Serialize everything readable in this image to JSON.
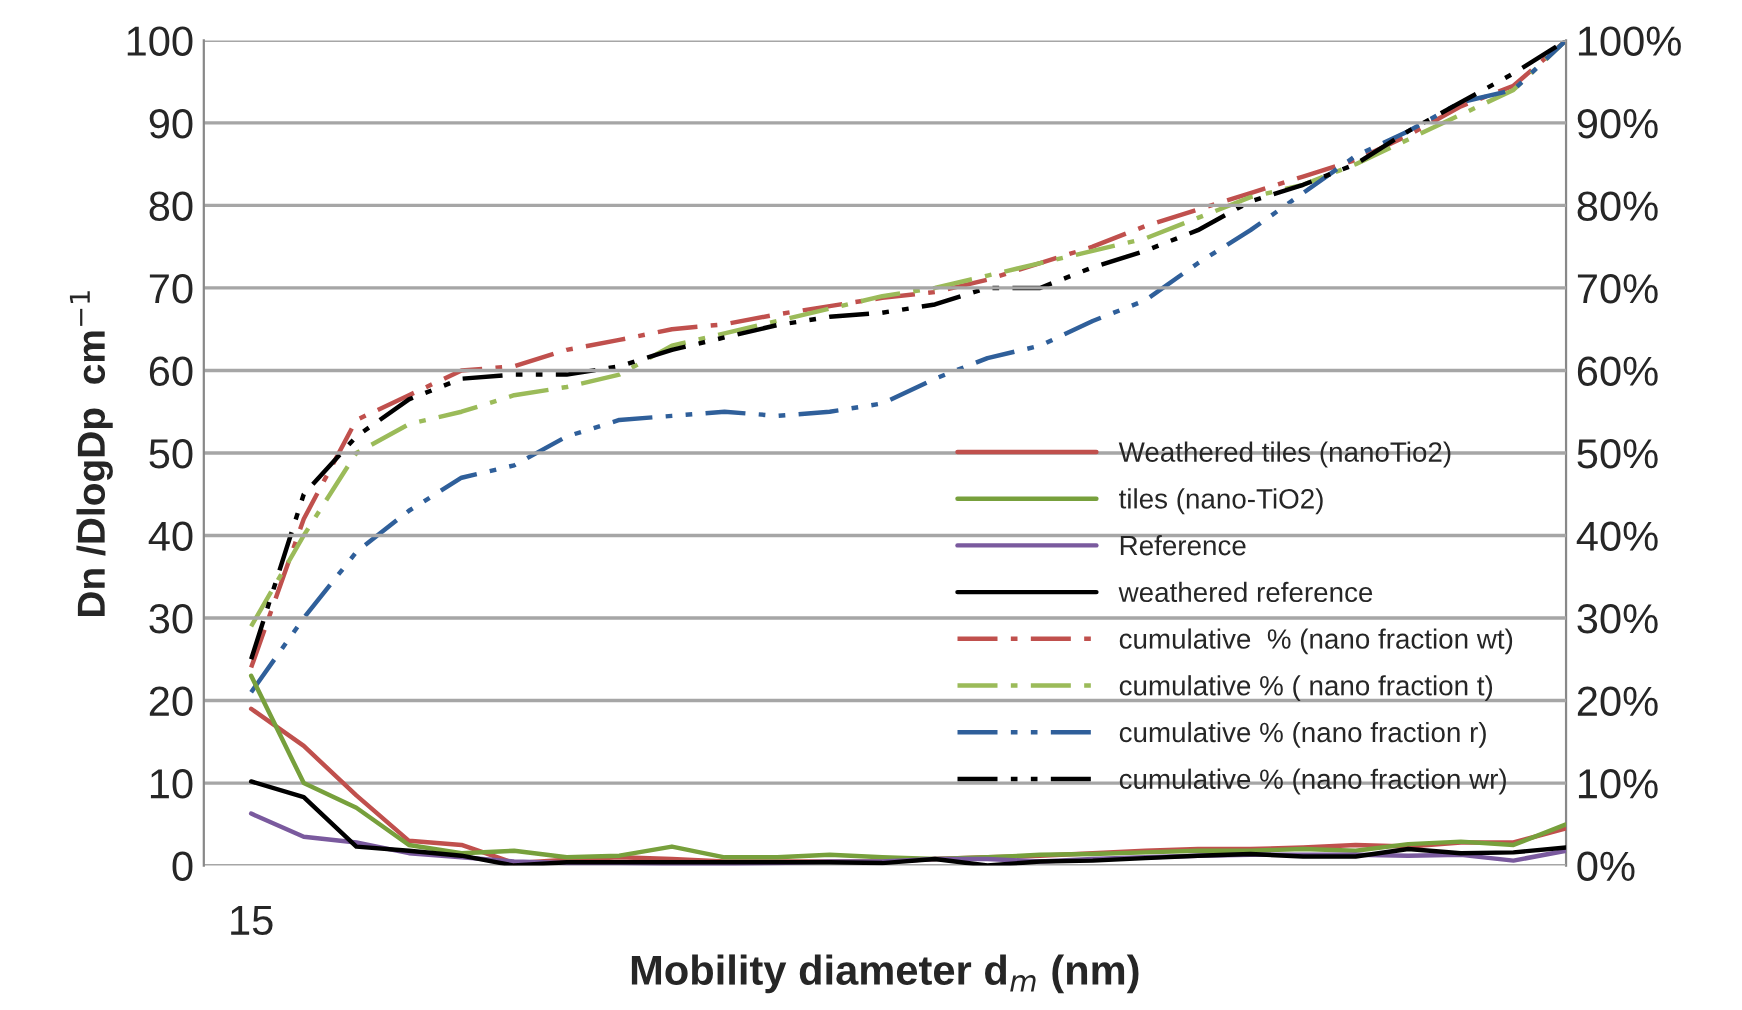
{
  "chart_data": {
    "type": "line",
    "xlabel": "Mobility diameter d$_{m}$ (nm)",
    "ylabel": "Dn /DlogDp  cm$^{−1}$",
    "categories": [
      "15",
      null,
      null,
      null,
      null,
      null,
      null,
      null,
      null,
      null,
      null,
      null,
      null,
      null,
      null,
      null,
      null,
      null,
      null,
      null,
      null,
      null,
      null,
      null,
      null,
      null
    ],
    "ylim": [
      0,
      100
    ],
    "yticks": [
      0,
      10,
      20,
      30,
      40,
      50,
      60,
      70,
      80,
      90,
      100
    ],
    "y2lim": [
      0,
      100
    ],
    "y2ticks": [
      {
        "value": 0,
        "label": "0%"
      },
      {
        "value": 10,
        "label": "10%"
      },
      {
        "value": 20,
        "label": "20%"
      },
      {
        "value": 30,
        "label": "30%"
      },
      {
        "value": 40,
        "label": "40%"
      },
      {
        "value": 50,
        "label": "50%"
      },
      {
        "value": 60,
        "label": "60%"
      },
      {
        "value": 70,
        "label": "70%"
      },
      {
        "value": 80,
        "label": "80%"
      },
      {
        "value": 90,
        "label": "90%"
      },
      {
        "value": 100,
        "label": "100%"
      }
    ],
    "grid": "y",
    "legend": "right",
    "marker": "none",
    "series": [
      {
        "name": "Weathered tiles (nanoTio2)",
        "color": "#c0504d",
        "line_style": "solid",
        "values": [
          19,
          14.5,
          8.5,
          3,
          2.5,
          0.3,
          0.7,
          1,
          0.8,
          0.5,
          0.5,
          0.5,
          0.5,
          0.8,
          1,
          1.2,
          1.5,
          1.8,
          2,
          2,
          2.2,
          2.5,
          2.3,
          2.8,
          2.8,
          4.5
        ]
      },
      {
        "name": "tiles (nano-TiO2)",
        "color": "#77a03c",
        "line_style": "solid",
        "values": [
          23,
          10,
          7,
          2.5,
          1.5,
          1.8,
          1,
          1.2,
          2.3,
          1,
          1,
          1.3,
          1,
          0.8,
          1,
          1.3,
          1.4,
          1.6,
          1.8,
          1.8,
          2,
          1.8,
          2.6,
          2.9,
          2.5,
          5
        ]
      },
      {
        "name": "Reference",
        "color": "#7a5a9e",
        "line_style": "solid",
        "values": [
          6.3,
          3.5,
          2.8,
          1.5,
          1,
          0.5,
          0.3,
          0.3,
          0.2,
          0.2,
          0.3,
          0.5,
          0.5,
          0.8,
          0.8,
          0.5,
          0.8,
          1,
          1.2,
          1.3,
          1.3,
          1.3,
          1.2,
          1.3,
          0.6,
          1.8
        ]
      },
      {
        "name": "weathered reference",
        "color": "#000000",
        "line_style": "solid",
        "values": [
          10.2,
          8.3,
          2.3,
          1.8,
          1.2,
          0,
          0.4,
          0.4,
          0.4,
          0.4,
          0.4,
          0.4,
          0.3,
          0.8,
          0,
          0.5,
          0.6,
          0.9,
          1.2,
          1.4,
          1.1,
          1.1,
          2,
          1.5,
          1.6,
          2.2
        ]
      },
      {
        "name": "cumulative  % (nano fraction wt)",
        "color": "#c0504d",
        "line_style": "dashdot",
        "axis": "y2",
        "values": [
          24,
          42,
          54,
          57,
          60,
          60.5,
          62.5,
          63.7,
          65,
          65.6,
          66.8,
          67.8,
          68.8,
          69.5,
          71,
          73,
          75,
          77.5,
          79.5,
          81.5,
          83.5,
          85.5,
          88.5,
          92,
          94.5,
          100
        ]
      },
      {
        "name": "cumulative % ( nano fraction t)",
        "color": "#9bbb59",
        "line_style": "dashdot",
        "axis": "y2",
        "values": [
          29,
          40,
          50,
          53.5,
          55,
          57,
          58,
          59.5,
          63,
          64.5,
          66,
          67.5,
          69,
          70,
          71.5,
          73,
          74.5,
          76,
          78.5,
          81,
          82.5,
          85,
          88,
          91,
          94,
          100
        ]
      },
      {
        "name": "cumulative % (nano fraction r)",
        "color": "#2f5f9a",
        "line_style": "dashdotdot",
        "axis": "y2",
        "values": [
          21,
          30,
          38,
          43,
          47,
          48.5,
          52,
          54,
          54.5,
          55,
          54.5,
          55,
          56,
          59,
          61.5,
          63,
          66,
          68.5,
          73,
          77,
          81.5,
          86,
          89,
          92.5,
          94,
          100
        ]
      },
      {
        "name": "cumulative % (nano fraction wr)",
        "color": "#000000",
        "line_style": "dashdotdot",
        "axis": "y2",
        "values": [
          25,
          45,
          52,
          56.5,
          59,
          59.5,
          59.5,
          60.5,
          62.5,
          64,
          65.5,
          66.5,
          67,
          68,
          70,
          70,
          72.5,
          74.5,
          77,
          80.5,
          82.5,
          85,
          89,
          92.5,
          96,
          100
        ]
      }
    ]
  }
}
